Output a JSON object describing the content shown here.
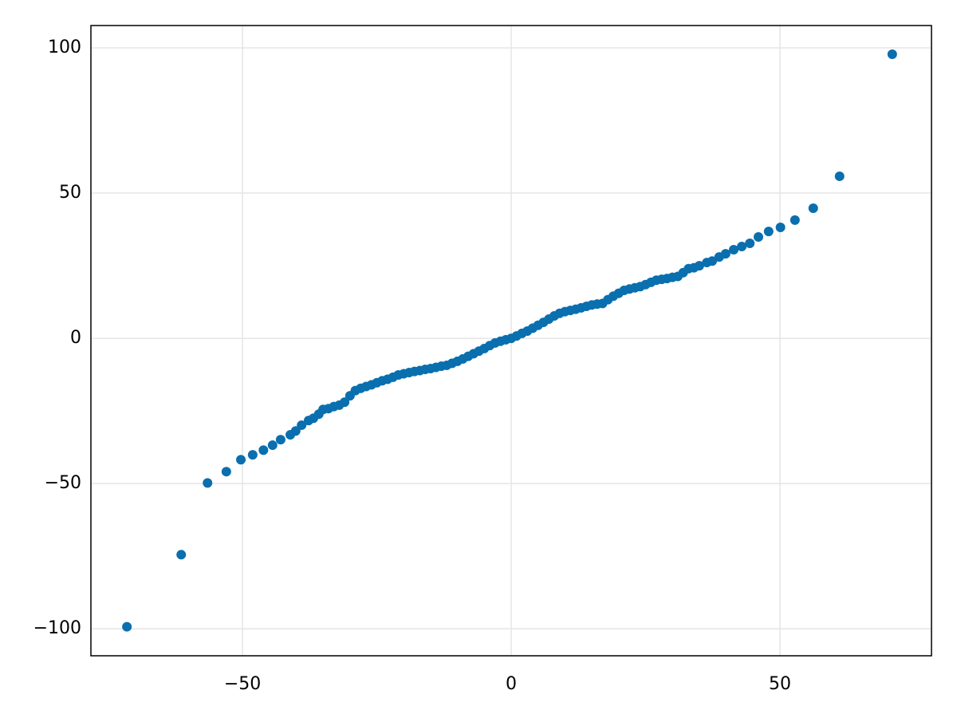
{
  "chart_data": {
    "type": "scatter",
    "x": [
      -71.5,
      -61.4,
      -56.5,
      -53.0,
      -50.3,
      -48.1,
      -46.1,
      -44.4,
      -42.9,
      -41.1,
      -40.1,
      -39.0,
      -37.7,
      -36.8,
      -35.8,
      -35,
      -34,
      -33,
      -32,
      -31,
      -30,
      -29,
      -28,
      -27,
      -26,
      -25,
      -24,
      -23,
      -22,
      -21,
      -20,
      -19,
      -18,
      -17,
      -16,
      -15,
      -14,
      -13,
      -12,
      -11,
      -10,
      -9,
      -8,
      -7,
      -6,
      -5,
      -4,
      -3,
      -2,
      -1,
      0,
      1,
      2,
      3,
      4,
      5,
      6,
      7,
      8,
      9,
      10,
      11,
      12,
      13,
      14,
      15,
      16,
      17,
      18,
      19,
      20,
      21,
      22,
      23,
      24,
      25,
      26,
      27,
      28,
      29,
      30,
      31,
      32,
      33,
      34,
      35,
      36.4,
      37.4,
      38.7,
      39.9,
      41.4,
      42.9,
      44.4,
      46.0,
      47.9,
      50.1,
      52.8,
      56.2,
      61.1,
      70.9
    ],
    "values": [
      -99.3,
      -74.5,
      -49.8,
      -45.9,
      -41.8,
      -40.1,
      -38.5,
      -36.8,
      -34.9,
      -33.2,
      -31.9,
      -29.9,
      -28.3,
      -27.5,
      -26.1,
      -24.5,
      -24.2,
      -23.5,
      -23.0,
      -22.0,
      -19.8,
      -18.0,
      -17.2,
      -16.6,
      -16.0,
      -15.3,
      -14.6,
      -14.1,
      -13.4,
      -12.6,
      -12.2,
      -11.8,
      -11.4,
      -11.1,
      -10.7,
      -10.4,
      -10.0,
      -9.6,
      -9.3,
      -8.6,
      -7.9,
      -7.1,
      -6.2,
      -5.3,
      -4.4,
      -3.5,
      -2.5,
      -1.6,
      -1.0,
      -0.5,
      0,
      0.8,
      1.7,
      2.5,
      3.5,
      4.5,
      5.5,
      6.6,
      7.7,
      8.6,
      9.2,
      9.6,
      10.0,
      10.5,
      11.0,
      11.5,
      11.8,
      12.0,
      13.3,
      14.5,
      15.5,
      16.5,
      17.0,
      17.4,
      17.8,
      18.5,
      19.3,
      20.0,
      20.3,
      20.6,
      21.0,
      21.3,
      22.6,
      24.0,
      24.3,
      25.0,
      26.1,
      26.6,
      28.0,
      29.1,
      30.5,
      31.6,
      32.7,
      34.9,
      36.8,
      38.2,
      40.7,
      44.8,
      55.8,
      97.8
    ],
    "color": "#0a6fae",
    "xlim": [
      -78.2,
      78.2
    ],
    "ylim": [
      -109.3,
      107.7
    ],
    "xticks": [
      {
        "value": -50,
        "label": "−50"
      },
      0,
      50
    ],
    "yticks": [
      {
        "value": -100,
        "label": "−100"
      },
      {
        "value": -50,
        "label": "−50"
      },
      0,
      50,
      100
    ],
    "grid": true
  }
}
